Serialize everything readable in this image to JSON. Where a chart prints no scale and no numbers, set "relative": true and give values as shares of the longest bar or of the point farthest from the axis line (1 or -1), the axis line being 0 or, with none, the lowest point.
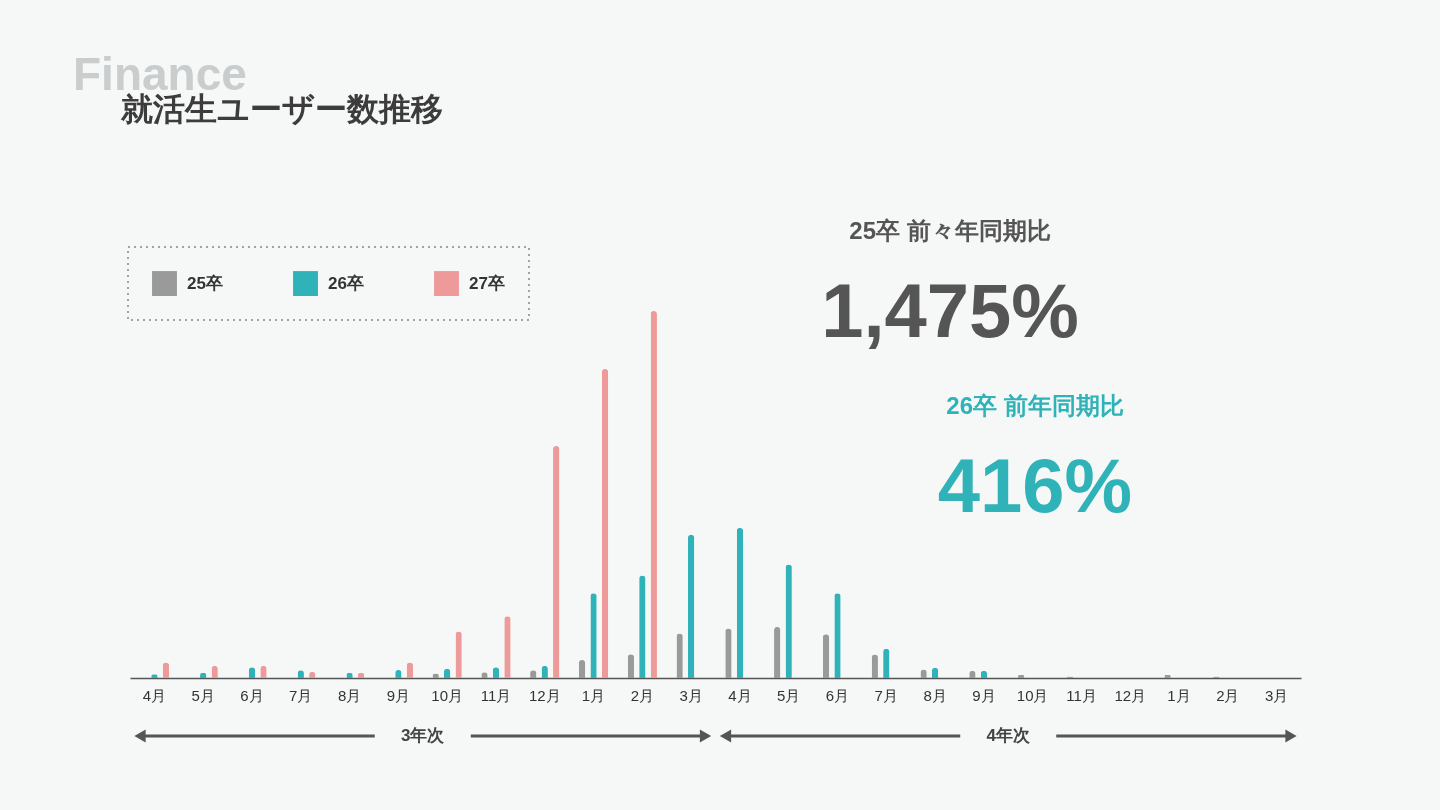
{
  "chart_data": {
    "type": "bar",
    "title": "就活生ユーザー数推移",
    "categories": [
      "4月",
      "5月",
      "6月",
      "7月",
      "8月",
      "9月",
      "10月",
      "11月",
      "12月",
      "1月",
      "2月",
      "3月",
      "4月",
      "5月",
      "6月",
      "7月",
      "8月",
      "9月",
      "10月",
      "11月",
      "12月",
      "1月",
      "2月",
      "3月"
    ],
    "series": [
      {
        "name": "25卒",
        "color": "#9a9a9a",
        "values": [
          null,
          null,
          null,
          null,
          null,
          null,
          0.012,
          0.016,
          0.021,
          0.049,
          0.065,
          0.121,
          0.135,
          0.139,
          0.119,
          0.064,
          0.023,
          0.02,
          0.008,
          0.004,
          null,
          0.009,
          0.004,
          null
        ]
      },
      {
        "name": "26卒",
        "color": "#2fb3b8",
        "values": [
          0.01,
          0.014,
          0.029,
          0.021,
          0.014,
          0.022,
          0.025,
          0.029,
          0.033,
          0.231,
          0.279,
          0.39,
          0.409,
          0.309,
          0.231,
          0.08,
          0.028,
          0.02,
          null,
          null,
          null,
          null,
          null,
          null
        ]
      },
      {
        "name": "27卒",
        "color": "#ee9a9a",
        "values": [
          0.042,
          0.033,
          0.033,
          0.017,
          0.014,
          0.042,
          0.127,
          0.168,
          0.632,
          0.842,
          1,
          null,
          null,
          null,
          null,
          null,
          null,
          null,
          null,
          null,
          null,
          null,
          null,
          null
        ]
      }
    ],
    "relative": true,
    "legend": "top left",
    "annotations": [
      "Finance",
      "25卒 前々年同期比",
      "1,475%",
      "26卒 前年同期比",
      "416%",
      "3年次",
      "4年次"
    ]
  }
}
